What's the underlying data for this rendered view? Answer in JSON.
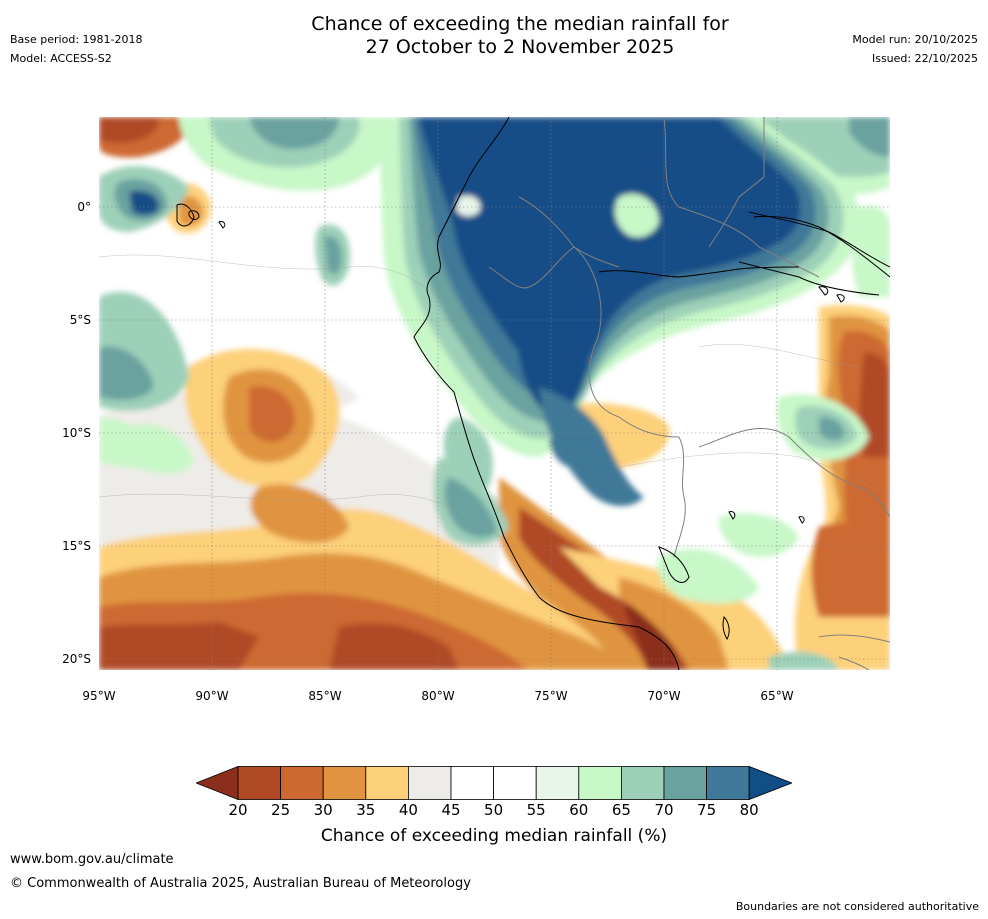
{
  "header": {
    "title_line1": "Chance of exceeding the median rainfall for",
    "title_line2": "27 October to 2 November 2025",
    "base_period": "Base period: 1981-2018",
    "model": "Model: ACCESS-S2",
    "model_run": "Model run: 20/10/2025",
    "issued": "Issued: 22/10/2025"
  },
  "map": {
    "lat_labels": [
      "0°",
      "5°S",
      "10°S",
      "15°S",
      "20°S"
    ],
    "lon_labels": [
      "95°W",
      "90°W",
      "85°W",
      "80°W",
      "75°W",
      "70°W",
      "65°W"
    ],
    "land_boundary_color": "#000000",
    "border_color": "#808080"
  },
  "colorbar": {
    "ticks": [
      "20",
      "25",
      "30",
      "35",
      "40",
      "45",
      "50",
      "55",
      "60",
      "65",
      "70",
      "75",
      "80"
    ],
    "colors": [
      "#8b2e1b",
      "#b04a26",
      "#cd6930",
      "#e09441",
      "#fdd07a",
      "#eeece8",
      "#ffffff",
      "#ffffff",
      "#e8f5e9",
      "#c8f7c8",
      "#9dd0b8",
      "#6aa2a0",
      "#3f7898",
      "#124e86"
    ],
    "label": "Chance of exceeding median rainfall (%)"
  },
  "footer": {
    "website": "www.bom.gov.au/climate",
    "copyright": "© Commonwealth of Australia 2025, Australian Bureau of Meteorology",
    "disclaimer": "Boundaries are not considered authoritative"
  }
}
